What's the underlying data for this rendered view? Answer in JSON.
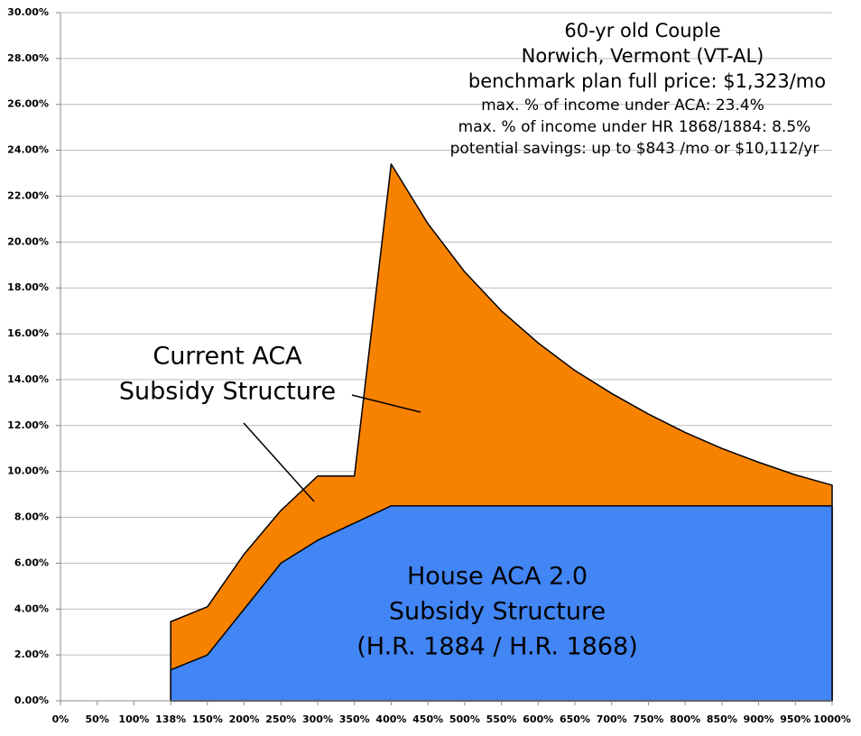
{
  "chart_data": {
    "type": "area",
    "categories": [
      "0%",
      "50%",
      "100%",
      "138%",
      "150%",
      "200%",
      "250%",
      "300%",
      "350%",
      "400%",
      "450%",
      "500%",
      "550%",
      "600%",
      "650%",
      "700%",
      "750%",
      "800%",
      "850%",
      "900%",
      "950%",
      "1000%"
    ],
    "series": [
      {
        "name": "Current ACA Subsidy Structure",
        "color": "#f78200",
        "values": [
          null,
          null,
          null,
          3.45,
          4.1,
          6.4,
          8.3,
          9.8,
          9.8,
          23.4,
          20.8,
          18.7,
          17.0,
          15.6,
          14.4,
          13.4,
          12.5,
          11.7,
          11.0,
          10.4,
          9.85,
          9.4
        ]
      },
      {
        "name": "House ACA 2.0 Subsidy Structure",
        "color": "#4285f4",
        "values": [
          null,
          null,
          null,
          1.35,
          2.0,
          4.0,
          6.0,
          7.0,
          7.75,
          8.5,
          8.5,
          8.5,
          8.5,
          8.5,
          8.5,
          8.5,
          8.5,
          8.5,
          8.5,
          8.5,
          8.5,
          8.5
        ]
      }
    ],
    "ylim": [
      0,
      30
    ],
    "yticks": [
      {
        "value": 0,
        "label": "0.00%"
      },
      {
        "value": 2,
        "label": "2.00%"
      },
      {
        "value": 4,
        "label": "4.00%"
      },
      {
        "value": 6,
        "label": "6.00%"
      },
      {
        "value": 8,
        "label": "8.00%"
      },
      {
        "value": 10,
        "label": "10.00%"
      },
      {
        "value": 12,
        "label": "12.00%"
      },
      {
        "value": 14,
        "label": "14.00%"
      },
      {
        "value": 16,
        "label": "16.00%"
      },
      {
        "value": 18,
        "label": "18.00%"
      },
      {
        "value": 20,
        "label": "20.00%"
      },
      {
        "value": 22,
        "label": "22.00%"
      },
      {
        "value": 24,
        "label": "24.00%"
      },
      {
        "value": 26,
        "label": "26.00%"
      },
      {
        "value": 28,
        "label": "28.00%"
      },
      {
        "value": 30,
        "label": "30.00%"
      }
    ],
    "grid": true,
    "annotations": [
      "60-yr old Couple",
      "Norwich, Vermont (VT-AL)",
      "benchmark plan full price: $1,323/mo",
      "max. % of income under ACA: 23.4%",
      "max. % of income under HR 1868/1884: 8.5%",
      "potential savings: up to $843 /mo or $10,112/yr",
      "Current ACA",
      "Subsidy Structure",
      "House ACA 2.0",
      "Subsidy Structure",
      "(H.R. 1884 / H.R. 1868)"
    ]
  }
}
